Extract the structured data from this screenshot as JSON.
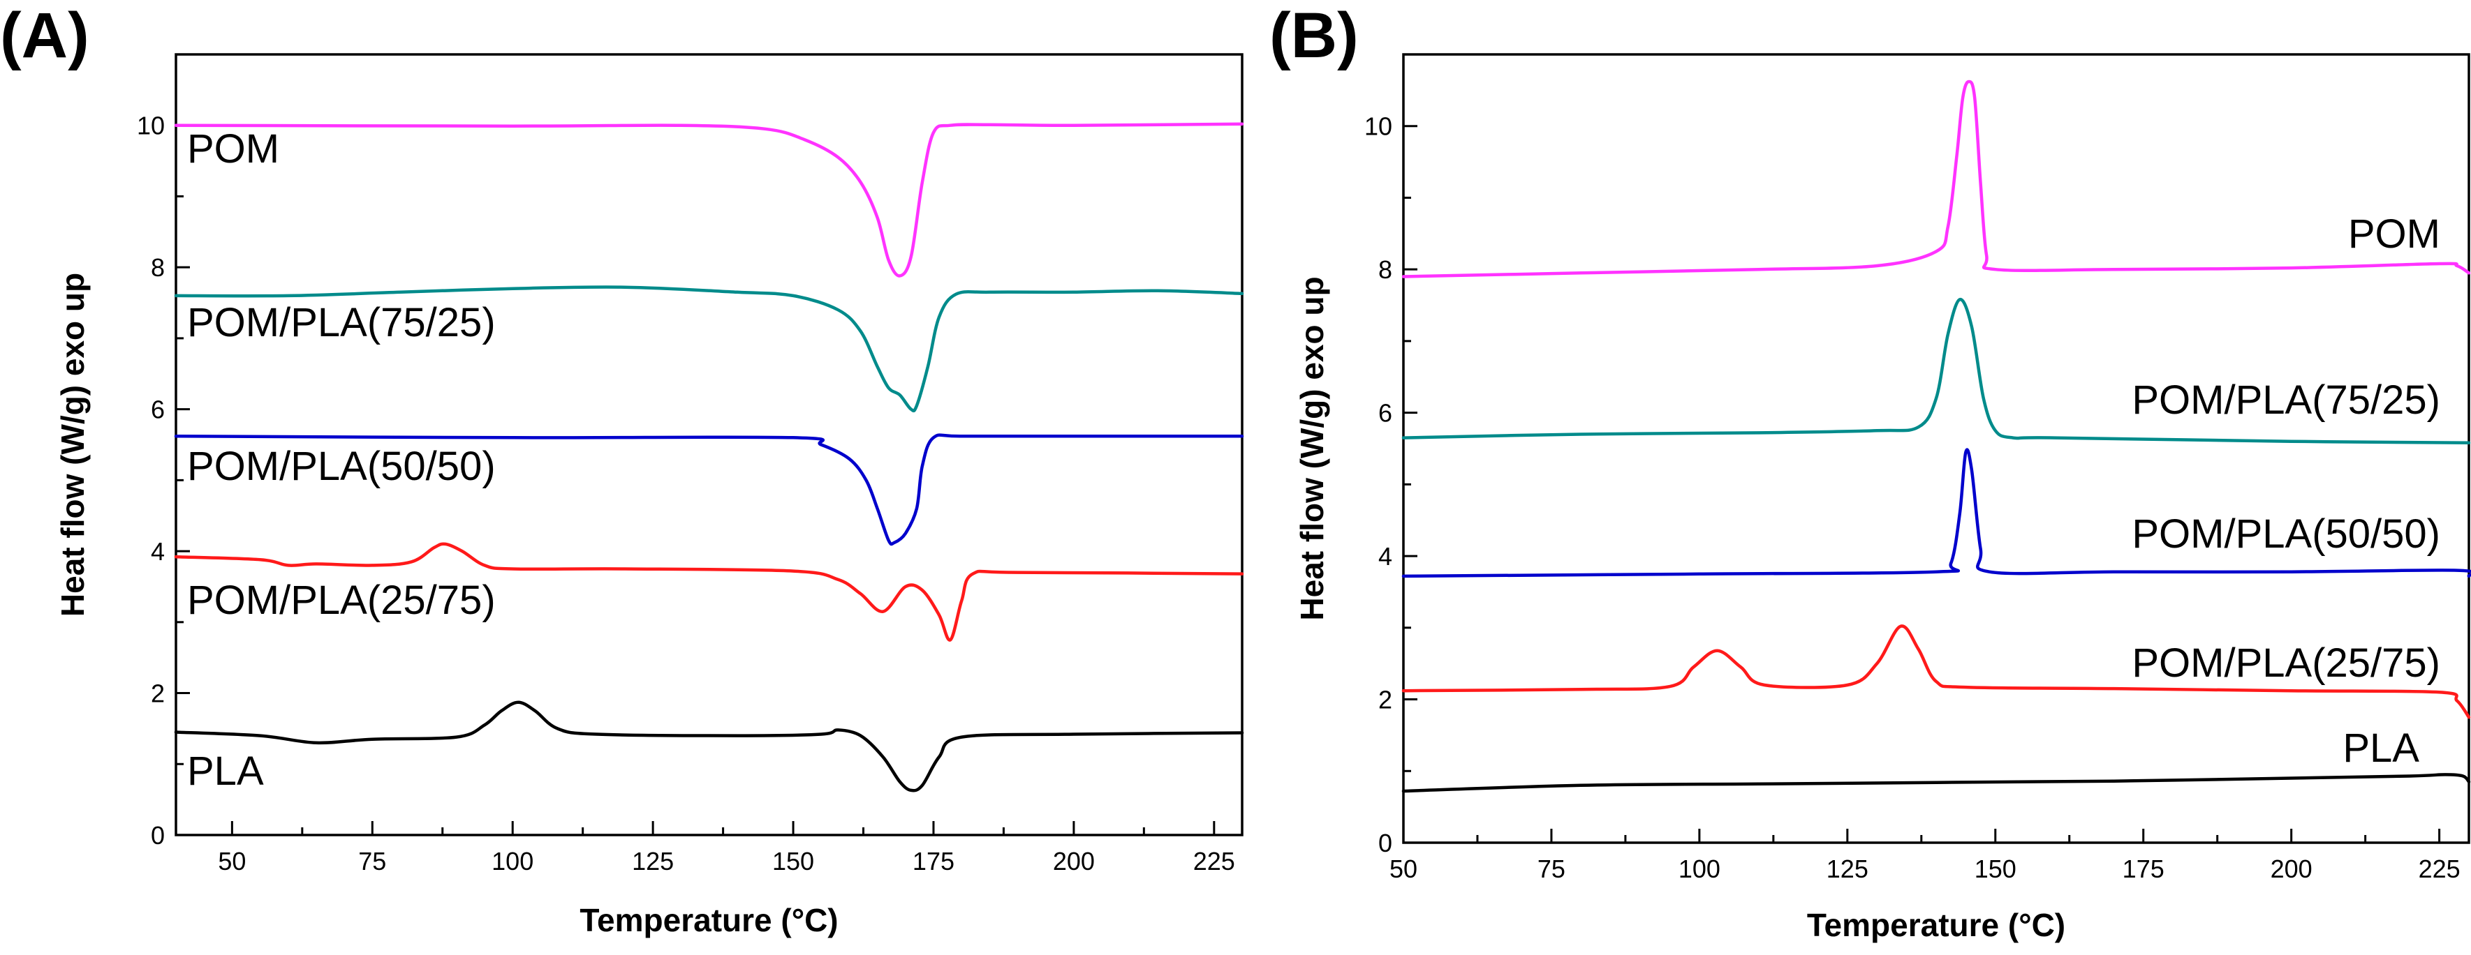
{
  "chart_data": [
    {
      "panel": "(A)",
      "type": "line",
      "xlabel": "Temperature (°C)",
      "ylabel": "Heat flow (W/g) exo up",
      "xlim": [
        40,
        230
      ],
      "ylim": [
        0,
        11
      ],
      "xticks": [
        50,
        75,
        100,
        125,
        150,
        175,
        200,
        225
      ],
      "yticks": [
        0,
        2,
        4,
        6,
        8,
        10
      ],
      "series": [
        {
          "name": "POM",
          "label": "POM",
          "color": "#ff33ff",
          "x": [
            40,
            100,
            130,
            145,
            152,
            158,
            162,
            165,
            167,
            169,
            171,
            173,
            175,
            178,
            185,
            200,
            230
          ],
          "y": [
            10.0,
            9.99,
            10.0,
            9.95,
            9.8,
            9.55,
            9.2,
            8.7,
            8.1,
            7.88,
            8.15,
            9.2,
            9.9,
            10.0,
            10.01,
            10.0,
            10.02
          ]
        },
        {
          "name": "POM/PLA(75/25)",
          "label": "POM/PLA(75/25)",
          "color": "#008b8b",
          "x": [
            40,
            60,
            80,
            100,
            120,
            140,
            150,
            158,
            162,
            165,
            167,
            169,
            171,
            172,
            174,
            176,
            179,
            185,
            200,
            215,
            230
          ],
          "y": [
            7.6,
            7.6,
            7.65,
            7.7,
            7.72,
            7.65,
            7.6,
            7.4,
            7.1,
            6.6,
            6.3,
            6.2,
            6.0,
            6.05,
            6.6,
            7.3,
            7.62,
            7.65,
            7.65,
            7.67,
            7.63
          ]
        },
        {
          "name": "POM/PLA(50/50)",
          "label": "POM/PLA(50/50)",
          "color": "#0000cc",
          "x": [
            40,
            100,
            150,
            155,
            160,
            163,
            165,
            167,
            168,
            170,
            172,
            173,
            175,
            180,
            200,
            230
          ],
          "y": [
            5.62,
            5.6,
            5.6,
            5.5,
            5.3,
            5.0,
            4.6,
            4.15,
            4.12,
            4.25,
            4.6,
            5.2,
            5.6,
            5.62,
            5.62,
            5.62
          ]
        },
        {
          "name": "POM/PLA(25/75)",
          "label": "POM/PLA(25/75)",
          "color": "#ff1a1a",
          "x": [
            40,
            55,
            60,
            65,
            75,
            82,
            86,
            88,
            91,
            95,
            100,
            120,
            150,
            158,
            162,
            166,
            170,
            173,
            176,
            178,
            180,
            182,
            190,
            230
          ],
          "y": [
            3.92,
            3.88,
            3.8,
            3.82,
            3.8,
            3.85,
            4.05,
            4.1,
            4.0,
            3.8,
            3.75,
            3.75,
            3.72,
            3.6,
            3.4,
            3.15,
            3.5,
            3.45,
            3.1,
            2.75,
            3.3,
            3.68,
            3.7,
            3.68
          ]
        },
        {
          "name": "PLA",
          "label": "PLA",
          "color": "#000000",
          "x": [
            40,
            55,
            65,
            75,
            90,
            95,
            98,
            101,
            104,
            108,
            115,
            140,
            155,
            158,
            162,
            166,
            169,
            171,
            173,
            176,
            180,
            200,
            230
          ],
          "y": [
            1.45,
            1.4,
            1.3,
            1.35,
            1.38,
            1.55,
            1.75,
            1.87,
            1.75,
            1.5,
            1.42,
            1.4,
            1.42,
            1.48,
            1.4,
            1.1,
            0.75,
            0.63,
            0.7,
            1.1,
            1.38,
            1.42,
            1.44
          ]
        }
      ]
    },
    {
      "panel": "(B)",
      "type": "line",
      "xlabel": "Temperature (°C)",
      "ylabel": "Heat flow (W/g) exo up",
      "xlim": [
        50,
        230
      ],
      "ylim": [
        0,
        11
      ],
      "xticks": [
        50,
        75,
        100,
        125,
        150,
        175,
        200,
        225
      ],
      "yticks": [
        0,
        2,
        4,
        6,
        8,
        10
      ],
      "series": [
        {
          "name": "POM",
          "label": "POM",
          "color": "#ff33ff",
          "x": [
            50,
            80,
            110,
            130,
            140,
            142,
            143.5,
            144.5,
            145.5,
            146.5,
            147.5,
            148.5,
            150,
            170,
            200,
            225,
            228,
            230
          ],
          "y": [
            7.9,
            7.95,
            8.0,
            8.05,
            8.25,
            8.6,
            9.6,
            10.4,
            10.62,
            10.4,
            9.2,
            8.2,
            8.0,
            8.0,
            8.02,
            8.08,
            8.05,
            7.95
          ]
        },
        {
          "name": "POM/PLA(75/25)",
          "label": "POM/PLA(75/25)",
          "color": "#008b8b",
          "x": [
            50,
            80,
            110,
            130,
            137,
            140,
            142,
            144,
            146,
            148,
            150,
            153,
            160,
            200,
            230
          ],
          "y": [
            5.65,
            5.7,
            5.72,
            5.75,
            5.8,
            6.2,
            7.1,
            7.58,
            7.2,
            6.2,
            5.75,
            5.65,
            5.65,
            5.6,
            5.58
          ]
        },
        {
          "name": "POM/PLA(50/50)",
          "label": "POM/PLA(50/50)",
          "color": "#0000cc",
          "x": [
            50,
            100,
            140,
            142.5,
            144,
            145,
            146,
            147.5,
            149,
            170,
            200,
            228,
            230
          ],
          "y": [
            3.72,
            3.75,
            3.78,
            3.9,
            4.6,
            5.45,
            5.2,
            4.1,
            3.78,
            3.78,
            3.78,
            3.8,
            3.72
          ]
        },
        {
          "name": "POM/PLA(25/75)",
          "label": "POM/PLA(25/75)",
          "color": "#ff1a1a",
          "x": [
            50,
            80,
            95,
            99,
            103,
            107,
            111,
            125,
            130,
            134,
            137,
            140,
            145,
            170,
            200,
            225,
            228,
            230
          ],
          "y": [
            2.12,
            2.14,
            2.18,
            2.45,
            2.68,
            2.45,
            2.2,
            2.2,
            2.5,
            3.02,
            2.7,
            2.25,
            2.17,
            2.15,
            2.12,
            2.1,
            1.98,
            1.75
          ]
        },
        {
          "name": "PLA",
          "label": "PLA",
          "color": "#000000",
          "x": [
            50,
            80,
            110,
            140,
            170,
            200,
            220,
            226,
            229,
            230
          ],
          "y": [
            0.72,
            0.8,
            0.82,
            0.84,
            0.86,
            0.9,
            0.93,
            0.95,
            0.93,
            0.85
          ]
        }
      ]
    }
  ]
}
